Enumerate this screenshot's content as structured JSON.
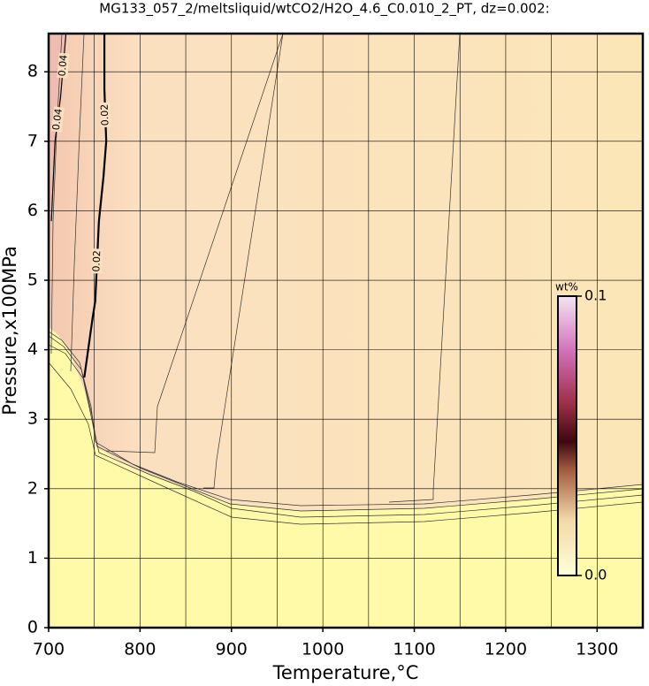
{
  "chart_data": {
    "type": "contour",
    "title": "MG133_057_2/meltsliquid/wtCO2/H2O_4.6_C0.010_2_PT, dz=0.002:",
    "x_label": "Temperature,°C",
    "y_label": "Pressure,x100MPa",
    "xlim": [
      700,
      1350
    ],
    "ylim": [
      0,
      8.55
    ],
    "xticks": [
      700,
      800,
      900,
      1000,
      1100,
      1200,
      1300
    ],
    "yticks": [
      0,
      1,
      2,
      3,
      4,
      5,
      6,
      7,
      8
    ],
    "xgrid": [
      700,
      750,
      800,
      850,
      900,
      950,
      1000,
      1050,
      1100,
      1150,
      1200,
      1250,
      1300,
      1350
    ],
    "grid": true,
    "contours": [
      {
        "level": 0.02,
        "color": "#000000",
        "x": [
          739,
          748,
          751,
          755,
          760,
          763,
          761,
          761
        ],
        "y": [
          3.6,
          4.45,
          4.7,
          5.85,
          6.49,
          7.0,
          7.76,
          8.55
        ]
      },
      {
        "level": 0.04,
        "color": "#000000",
        "x": [
          703,
          707,
          713,
          719
        ],
        "y": [
          5.85,
          7.0,
          7.63,
          8.55
        ]
      }
    ],
    "colorbar": {
      "title": "wt%",
      "lim": [
        0,
        0.1
      ],
      "ticks": [
        {
          "value": 0,
          "label": "0.0"
        },
        {
          "value": 0.1,
          "label": "0.1"
        }
      ]
    }
  }
}
